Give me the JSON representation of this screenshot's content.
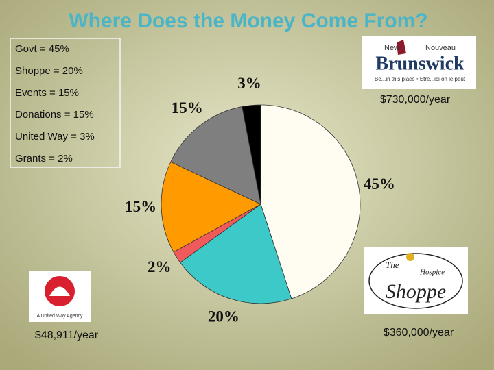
{
  "chart_data": {
    "type": "pie",
    "title": "Where Does the Money Come From?",
    "categories": [
      "Govt",
      "Shoppe",
      "Grants",
      "Events",
      "Donations",
      "United Way"
    ],
    "values": [
      45,
      20,
      2,
      15,
      15,
      3
    ],
    "value_labels": [
      "45%",
      "20%",
      "2%",
      "15%",
      "15%",
      "3%"
    ],
    "colors": [
      "#fffdf2",
      "#3ec9c9",
      "#f05a5a",
      "#ff9a00",
      "#7f7f7f",
      "#000000"
    ]
  },
  "legend_box": {
    "lines": [
      "Govt = 45%",
      "Shoppe = 20%",
      "Events = 15%",
      "Donations = 15%",
      "United Way = 3%",
      "Grants = 2%"
    ]
  },
  "logos": {
    "nb": {
      "line1": "New",
      "line2": "Nouveau",
      "name": "Brunswick",
      "tagline": "Be...in this place • Etre...ici on le peut"
    },
    "united_way": {
      "caption": "A United Way Agency"
    },
    "shoppe": {
      "the": "The",
      "hospice": "Hospice",
      "name": "Shoppe"
    }
  },
  "amounts": {
    "govt": "$730,000/year",
    "united_way": "$48,911/year",
    "shoppe": "$360,000/year"
  }
}
